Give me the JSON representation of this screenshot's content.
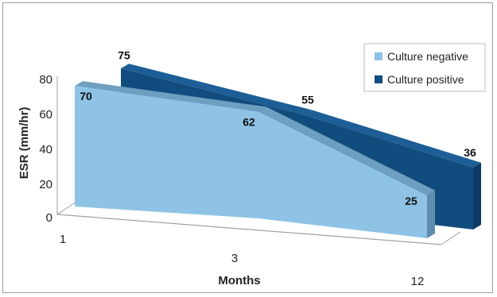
{
  "chart_data": {
    "type": "area",
    "variant": "3d",
    "title": "",
    "xlabel": "Months",
    "ylabel": "ESR (mm/hr)",
    "categories": [
      "1",
      "3",
      "12"
    ],
    "y_ticks": [
      "0",
      "20",
      "40",
      "60",
      "80"
    ],
    "ylim": [
      0,
      80
    ],
    "grid": false,
    "legend_position": "top-right",
    "series": [
      {
        "name": "Culture negative",
        "values": [
          70,
          62,
          25
        ],
        "color": "#8ec3e6",
        "top_color": "#6e9fc0",
        "side_color": "#5f8db0"
      },
      {
        "name": "Culture positive",
        "values": [
          75,
          55,
          36
        ],
        "color": "#114c7e",
        "top_color": "#1c5e95",
        "side_color": "#0c3a63"
      }
    ]
  }
}
